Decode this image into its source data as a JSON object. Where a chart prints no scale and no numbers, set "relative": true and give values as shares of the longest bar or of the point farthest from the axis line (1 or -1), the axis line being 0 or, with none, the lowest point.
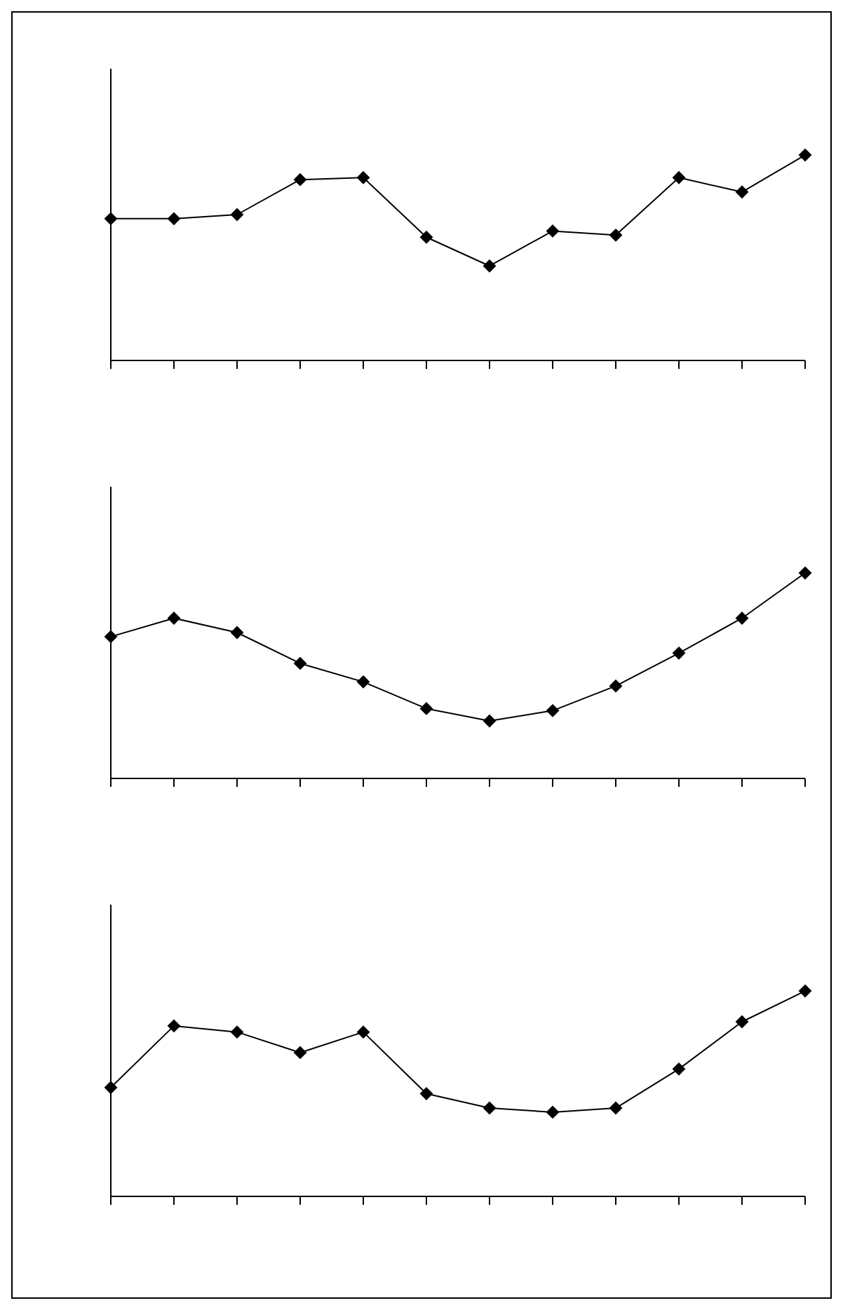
{
  "chart_data": [
    {
      "type": "line",
      "relative": true,
      "categories": [
        null,
        null,
        null,
        null,
        null,
        null,
        null,
        null,
        null,
        null,
        null,
        null
      ],
      "marker": "diamond",
      "grid": false,
      "legend": false,
      "series": [
        {
          "color": "#000000",
          "values": [
            0.69,
            0.69,
            0.71,
            0.88,
            0.89,
            0.6,
            0.46,
            0.63,
            0.61,
            0.89,
            0.82,
            1
          ]
        }
      ]
    },
    {
      "type": "line",
      "relative": true,
      "categories": [
        null,
        null,
        null,
        null,
        null,
        null,
        null,
        null,
        null,
        null,
        null,
        null
      ],
      "marker": "diamond",
      "grid": false,
      "legend": false,
      "series": [
        {
          "color": "#000000",
          "values": [
            0.69,
            0.78,
            0.71,
            0.56,
            0.47,
            0.34,
            0.28,
            0.33,
            0.45,
            0.61,
            0.78,
            1
          ]
        }
      ]
    },
    {
      "type": "line",
      "relative": true,
      "categories": [
        null,
        null,
        null,
        null,
        null,
        null,
        null,
        null,
        null,
        null,
        null,
        null
      ],
      "marker": "diamond",
      "grid": false,
      "legend": false,
      "series": [
        {
          "color": "#000000",
          "values": [
            0.53,
            0.83,
            0.8,
            0.7,
            0.8,
            0.5,
            0.43,
            0.41,
            0.43,
            0.62,
            0.85,
            1
          ]
        }
      ]
    }
  ]
}
